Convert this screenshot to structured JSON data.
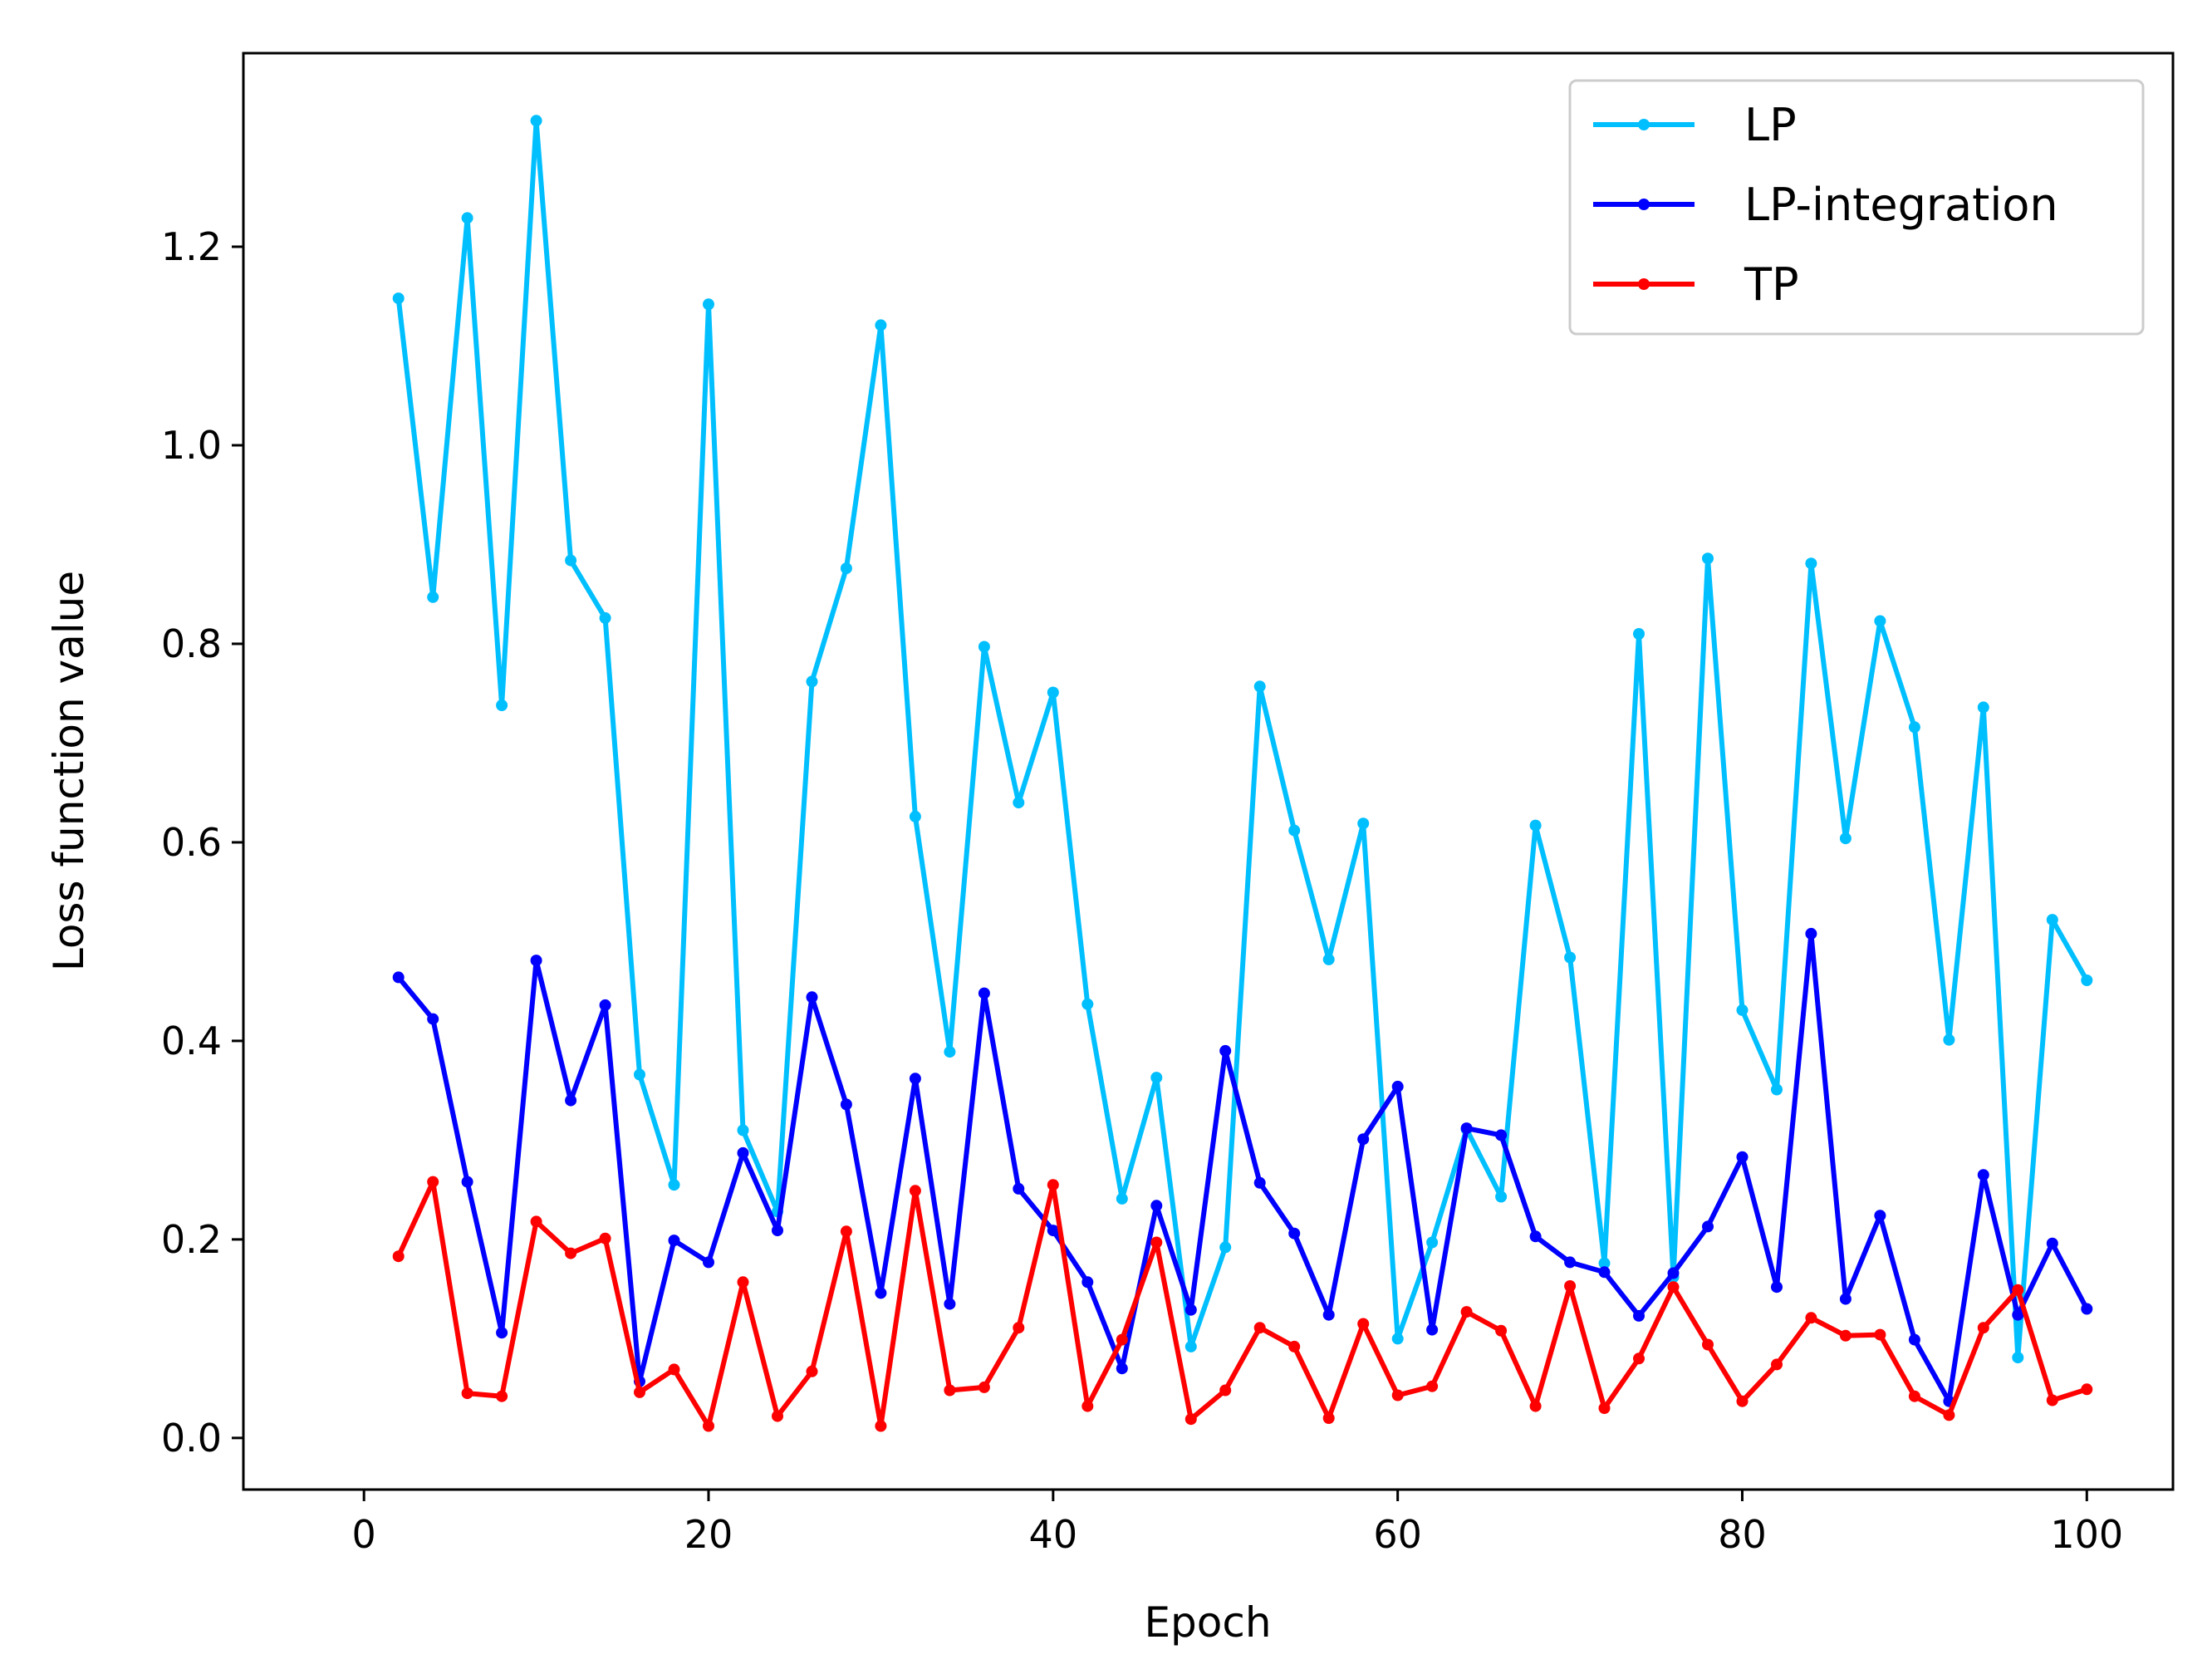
{
  "chart_data": {
    "type": "line",
    "title": "",
    "xlabel": "Epoch",
    "ylabel": "Loss function value",
    "xlim": [
      -7,
      105
    ],
    "ylim": [
      -0.052,
      1.395
    ],
    "xticks": [
      0,
      20,
      40,
      60,
      80,
      100
    ],
    "xtick_labels": [
      "0",
      "20",
      "40",
      "60",
      "80",
      "100"
    ],
    "yticks": [
      0.0,
      0.2,
      0.4,
      0.6,
      0.8,
      1.0,
      1.2
    ],
    "ytick_labels": [
      "0.0",
      "0.2",
      "0.4",
      "0.6",
      "0.8",
      "1.0",
      "1.2"
    ],
    "grid": false,
    "legend_position": "top-right",
    "x": [
      2,
      4,
      6,
      8,
      10,
      12,
      14,
      16,
      18,
      20,
      22,
      24,
      26,
      28,
      30,
      32,
      34,
      36,
      38,
      40,
      42,
      44,
      46,
      48,
      50,
      52,
      54,
      56,
      58,
      60,
      62,
      64,
      66,
      68,
      70,
      72,
      74,
      76,
      78,
      80,
      82,
      84,
      86,
      88,
      90,
      92,
      94,
      96,
      98,
      100
    ],
    "series": [
      {
        "name": "LP",
        "color": "#00bfff",
        "values": [
          1.148,
          0.847,
          1.229,
          0.738,
          1.327,
          0.884,
          0.826,
          0.366,
          0.255,
          1.142,
          0.31,
          0.228,
          0.762,
          0.876,
          1.121,
          0.626,
          0.389,
          0.797,
          0.64,
          0.751,
          0.437,
          0.241,
          0.363,
          0.092,
          0.192,
          0.757,
          0.612,
          0.482,
          0.619,
          0.1,
          0.197,
          0.311,
          0.243,
          0.617,
          0.484,
          0.176,
          0.81,
          0.162,
          0.886,
          0.431,
          0.351,
          0.881,
          0.604,
          0.823,
          0.716,
          0.401,
          0.736,
          0.081,
          0.522,
          0.461
        ]
      },
      {
        "name": "LP-integration",
        "color": "#0000ff",
        "values": [
          0.464,
          0.422,
          0.258,
          0.106,
          0.481,
          0.34,
          0.436,
          0.057,
          0.199,
          0.177,
          0.287,
          0.209,
          0.444,
          0.336,
          0.146,
          0.362,
          0.135,
          0.448,
          0.251,
          0.209,
          0.157,
          0.07,
          0.234,
          0.129,
          0.39,
          0.257,
          0.206,
          0.124,
          0.301,
          0.354,
          0.109,
          0.312,
          0.305,
          0.203,
          0.177,
          0.167,
          0.123,
          0.166,
          0.213,
          0.283,
          0.152,
          0.508,
          0.14,
          0.224,
          0.099,
          0.037,
          0.265,
          0.124,
          0.196,
          0.13
        ]
      },
      {
        "name": "TP",
        "color": "#ff0000",
        "values": [
          0.183,
          0.258,
          0.045,
          0.042,
          0.218,
          0.186,
          0.201,
          0.046,
          0.069,
          0.012,
          0.157,
          0.022,
          0.067,
          0.208,
          0.012,
          0.249,
          0.048,
          0.051,
          0.111,
          0.255,
          0.032,
          0.099,
          0.197,
          0.019,
          0.048,
          0.111,
          0.092,
          0.02,
          0.115,
          0.043,
          0.052,
          0.127,
          0.108,
          0.032,
          0.153,
          0.03,
          0.08,
          0.152,
          0.094,
          0.037,
          0.074,
          0.121,
          0.103,
          0.104,
          0.042,
          0.023,
          0.111,
          0.149,
          0.038,
          0.049
        ]
      }
    ]
  }
}
